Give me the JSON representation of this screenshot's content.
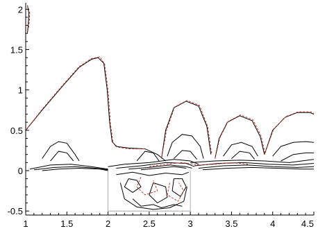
{
  "chart_data": {
    "type": "line",
    "title": "",
    "xlabel": "",
    "ylabel": "",
    "xlim": [
      1,
      4.5
    ],
    "ylim": [
      -0.55,
      2.08
    ],
    "x_ticks": [
      1,
      1.5,
      2,
      2.5,
      3,
      3.5,
      4,
      4.5
    ],
    "y_ticks": [
      -0.5,
      0,
      0.5,
      1,
      1.5,
      2
    ],
    "x_tick_labels": [
      "1",
      "1.5",
      "2",
      "2.5",
      "3",
      "3.5",
      "4",
      "4.5"
    ],
    "y_tick_labels": [
      "-0.5",
      "0",
      "0.5",
      "1",
      "1.5",
      "2"
    ],
    "grid": false,
    "legend": "none",
    "cavity": {
      "x": [
        2,
        3
      ],
      "y_bottom": -0.5
    },
    "colors": {
      "series_a": "#000000",
      "series_b": "#c0392b"
    },
    "series": [
      {
        "style": "solid",
        "contours": [
          [
            [
              1.0,
              0.5
            ],
            [
              1.2,
              0.75
            ],
            [
              1.45,
              1.05
            ],
            [
              1.65,
              1.28
            ],
            [
              1.8,
              1.38
            ],
            [
              1.88,
              1.4
            ],
            [
              1.95,
              1.33
            ],
            [
              1.99,
              1.0
            ],
            [
              2.02,
              0.6
            ],
            [
              2.05,
              0.36
            ],
            [
              2.1,
              0.3
            ],
            [
              2.25,
              0.28
            ],
            [
              2.45,
              0.27
            ],
            [
              2.6,
              0.2
            ],
            [
              2.7,
              0.12
            ]
          ],
          [
            [
              1.02,
              2.05
            ],
            [
              1.04,
              1.95
            ],
            [
              1.03,
              1.8
            ],
            [
              1.02,
              1.7
            ]
          ],
          [
            [
              1.2,
              0.15
            ],
            [
              1.3,
              0.3
            ],
            [
              1.4,
              0.36
            ],
            [
              1.5,
              0.34
            ],
            [
              1.6,
              0.2
            ],
            [
              1.65,
              0.12
            ]
          ],
          [
            [
              1.3,
              0.12
            ],
            [
              1.4,
              0.24
            ],
            [
              1.5,
              0.22
            ],
            [
              1.58,
              0.12
            ]
          ],
          [
            [
              2.35,
              0.12
            ],
            [
              2.45,
              0.24
            ],
            [
              2.55,
              0.22
            ],
            [
              2.62,
              0.12
            ]
          ],
          [
            [
              2.65,
              0.15
            ],
            [
              2.7,
              0.5
            ],
            [
              2.8,
              0.78
            ],
            [
              2.95,
              0.86
            ],
            [
              3.1,
              0.8
            ],
            [
              3.2,
              0.55
            ],
            [
              3.25,
              0.2
            ]
          ],
          [
            [
              2.72,
              0.18
            ],
            [
              2.78,
              0.35
            ],
            [
              2.9,
              0.45
            ],
            [
              3.02,
              0.43
            ],
            [
              3.12,
              0.3
            ],
            [
              3.16,
              0.15
            ]
          ],
          [
            [
              2.8,
              0.15
            ],
            [
              2.9,
              0.25
            ],
            [
              3.0,
              0.24
            ],
            [
              3.08,
              0.14
            ]
          ],
          [
            [
              3.3,
              0.15
            ],
            [
              3.35,
              0.4
            ],
            [
              3.45,
              0.6
            ],
            [
              3.6,
              0.68
            ],
            [
              3.75,
              0.62
            ],
            [
              3.85,
              0.42
            ],
            [
              3.9,
              0.2
            ]
          ],
          [
            [
              3.4,
              0.18
            ],
            [
              3.5,
              0.32
            ],
            [
              3.62,
              0.35
            ],
            [
              3.75,
              0.3
            ],
            [
              3.82,
              0.18
            ]
          ],
          [
            [
              3.5,
              0.15
            ],
            [
              3.6,
              0.24
            ],
            [
              3.72,
              0.22
            ],
            [
              3.78,
              0.14
            ]
          ],
          [
            [
              3.9,
              0.2
            ],
            [
              4.0,
              0.5
            ],
            [
              4.15,
              0.66
            ],
            [
              4.3,
              0.72
            ],
            [
              4.45,
              0.72
            ],
            [
              4.5,
              0.7
            ]
          ],
          [
            [
              4.0,
              0.18
            ],
            [
              4.1,
              0.3
            ],
            [
              4.25,
              0.35
            ],
            [
              4.4,
              0.36
            ],
            [
              4.5,
              0.35
            ]
          ],
          [
            [
              4.1,
              0.12
            ],
            [
              4.25,
              0.2
            ],
            [
              4.4,
              0.22
            ],
            [
              4.5,
              0.22
            ]
          ],
          [
            [
              1.05,
              0.02
            ],
            [
              1.3,
              0.07
            ],
            [
              1.55,
              0.08
            ],
            [
              1.8,
              0.05
            ],
            [
              2.0,
              0.02
            ]
          ],
          [
            [
              1.1,
              0.01
            ],
            [
              1.35,
              0.04
            ],
            [
              1.6,
              0.05
            ],
            [
              1.85,
              0.03
            ],
            [
              2.0,
              0.01
            ]
          ],
          [
            [
              1.2,
              0.0
            ],
            [
              1.4,
              0.02
            ],
            [
              1.65,
              0.03
            ],
            [
              1.9,
              0.02
            ],
            [
              2.0,
              0.0
            ]
          ],
          [
            [
              2.0,
              0.05
            ],
            [
              2.2,
              0.08
            ],
            [
              2.5,
              0.1
            ],
            [
              2.8,
              0.14
            ],
            [
              3.0,
              0.12
            ],
            [
              3.1,
              0.08
            ]
          ],
          [
            [
              2.1,
              0.03
            ],
            [
              2.4,
              0.06
            ],
            [
              2.7,
              0.1
            ],
            [
              2.95,
              0.09
            ],
            [
              3.05,
              0.05
            ]
          ],
          [
            [
              2.25,
              0.02
            ],
            [
              2.5,
              0.04
            ],
            [
              2.75,
              0.07
            ],
            [
              2.95,
              0.05
            ],
            [
              3.02,
              0.03
            ]
          ],
          [
            [
              2.4,
              0.01
            ],
            [
              2.6,
              0.03
            ],
            [
              2.8,
              0.05
            ],
            [
              2.95,
              0.03
            ]
          ],
          [
            [
              3.0,
              0.1
            ],
            [
              3.3,
              0.12
            ],
            [
              3.6,
              0.13
            ],
            [
              3.9,
              0.12
            ],
            [
              4.2,
              0.1
            ],
            [
              4.5,
              0.14
            ]
          ],
          [
            [
              3.05,
              0.06
            ],
            [
              3.35,
              0.09
            ],
            [
              3.65,
              0.1
            ],
            [
              3.95,
              0.08
            ],
            [
              4.25,
              0.07
            ],
            [
              4.5,
              0.09
            ]
          ],
          [
            [
              3.1,
              0.03
            ],
            [
              3.4,
              0.06
            ],
            [
              3.7,
              0.07
            ],
            [
              4.0,
              0.05
            ],
            [
              4.3,
              0.04
            ],
            [
              4.5,
              0.05
            ]
          ],
          [
            [
              3.15,
              0.01
            ],
            [
              3.45,
              0.03
            ],
            [
              3.75,
              0.04
            ],
            [
              4.05,
              0.03
            ],
            [
              4.35,
              0.02
            ],
            [
              4.5,
              0.02
            ]
          ],
          [
            [
              2.1,
              -0.05
            ],
            [
              2.3,
              -0.02
            ],
            [
              2.5,
              -0.06
            ],
            [
              2.7,
              -0.03
            ],
            [
              2.9,
              -0.05
            ],
            [
              2.98,
              -0.02
            ]
          ],
          [
            [
              2.25,
              -0.1
            ],
            [
              2.2,
              -0.2
            ],
            [
              2.3,
              -0.27
            ],
            [
              2.4,
              -0.2
            ],
            [
              2.35,
              -0.12
            ],
            [
              2.25,
              -0.1
            ]
          ],
          [
            [
              2.55,
              -0.15
            ],
            [
              2.5,
              -0.3
            ],
            [
              2.6,
              -0.4
            ],
            [
              2.72,
              -0.33
            ],
            [
              2.7,
              -0.2
            ],
            [
              2.55,
              -0.15
            ]
          ],
          [
            [
              2.8,
              -0.1
            ],
            [
              2.78,
              -0.25
            ],
            [
              2.88,
              -0.32
            ],
            [
              2.95,
              -0.2
            ],
            [
              2.9,
              -0.1
            ],
            [
              2.8,
              -0.1
            ]
          ],
          [
            [
              2.3,
              -0.35
            ],
            [
              2.4,
              -0.44
            ],
            [
              2.55,
              -0.42
            ],
            [
              2.65,
              -0.46
            ],
            [
              2.8,
              -0.42
            ],
            [
              2.9,
              -0.44
            ]
          ],
          [
            [
              2.15,
              -0.15
            ],
            [
              2.2,
              -0.35
            ],
            [
              2.35,
              -0.45
            ],
            [
              2.55,
              -0.48
            ],
            [
              2.75,
              -0.46
            ],
            [
              2.92,
              -0.38
            ],
            [
              2.96,
              -0.2
            ]
          ]
        ]
      },
      {
        "style": "dashed",
        "contours": [
          [
            [
              1.0,
              0.5
            ],
            [
              1.2,
              0.76
            ],
            [
              1.45,
              1.06
            ],
            [
              1.65,
              1.29
            ],
            [
              1.8,
              1.39
            ],
            [
              1.9,
              1.41
            ],
            [
              1.96,
              1.32
            ],
            [
              2.0,
              1.0
            ],
            [
              2.03,
              0.58
            ],
            [
              2.06,
              0.35
            ],
            [
              2.12,
              0.29
            ],
            [
              2.26,
              0.27
            ],
            [
              2.46,
              0.27
            ]
          ],
          [
            [
              1.02,
              2.05
            ],
            [
              1.05,
              1.95
            ],
            [
              1.04,
              1.8
            ],
            [
              1.02,
              1.7
            ]
          ],
          [
            [
              2.65,
              0.15
            ],
            [
              2.71,
              0.5
            ],
            [
              2.81,
              0.79
            ],
            [
              2.96,
              0.87
            ],
            [
              3.11,
              0.81
            ],
            [
              3.21,
              0.55
            ],
            [
              3.26,
              0.2
            ]
          ],
          [
            [
              3.3,
              0.15
            ],
            [
              3.36,
              0.41
            ],
            [
              3.46,
              0.61
            ],
            [
              3.61,
              0.69
            ],
            [
              3.76,
              0.63
            ],
            [
              3.86,
              0.43
            ],
            [
              3.91,
              0.2
            ]
          ],
          [
            [
              3.9,
              0.2
            ],
            [
              4.01,
              0.51
            ],
            [
              4.16,
              0.67
            ],
            [
              4.31,
              0.73
            ],
            [
              4.46,
              0.73
            ],
            [
              4.5,
              0.71
            ]
          ],
          [
            [
              2.5,
              0.05
            ],
            [
              2.7,
              0.08
            ],
            [
              2.9,
              0.1
            ],
            [
              3.1,
              0.07
            ],
            [
              3.3,
              0.08
            ],
            [
              3.5,
              0.1
            ],
            [
              3.7,
              0.08
            ]
          ],
          [
            [
              2.4,
              -0.08
            ],
            [
              2.35,
              -0.2
            ],
            [
              2.45,
              -0.3
            ],
            [
              2.6,
              -0.25
            ],
            [
              2.55,
              -0.12
            ]
          ],
          [
            [
              2.75,
              -0.15
            ],
            [
              2.72,
              -0.3
            ],
            [
              2.85,
              -0.38
            ],
            [
              2.92,
              -0.25
            ],
            [
              2.86,
              -0.15
            ]
          ]
        ]
      }
    ]
  }
}
